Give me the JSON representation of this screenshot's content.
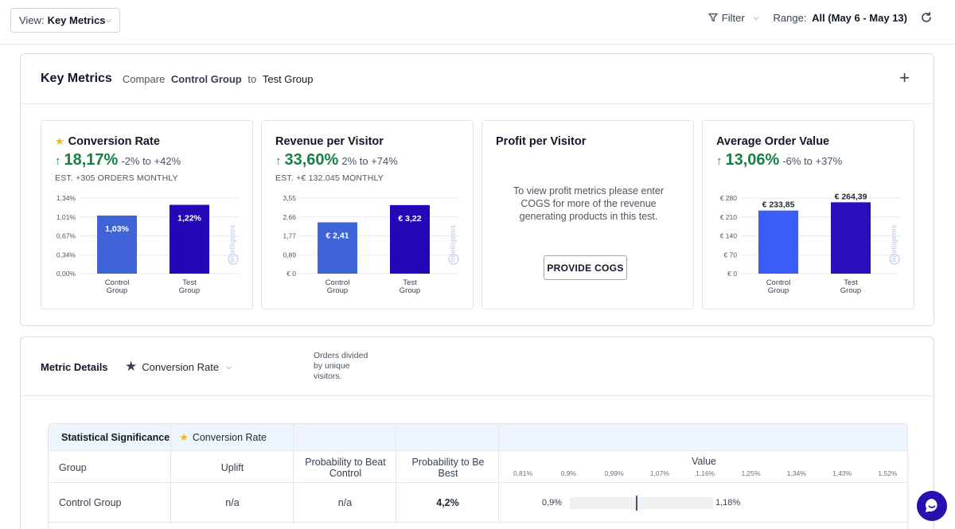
{
  "topbar": {
    "view_label": "View:",
    "view_value": "Key Metrics",
    "filter_label": "Filter",
    "range_label": "Range:",
    "range_value": "All (May 6 - May 13)"
  },
  "key_metrics": {
    "title": "Key Metrics",
    "compare_prefix": "Compare",
    "group_a": "Control Group",
    "compare_to": "to",
    "group_b": "Test Group"
  },
  "cards": [
    {
      "title": "Conversion Rate",
      "big_value": "18,17%",
      "range": "-2% to +42%",
      "est": "EST. +305 ORDERS MONTHLY",
      "chart_data": {
        "type": "bar",
        "categories": [
          "Control Group",
          "Test Group"
        ],
        "values": [
          1.03,
          1.22
        ],
        "value_labels": [
          "1,03%",
          "1,22%"
        ],
        "yticks": [
          "1,34%",
          "1,01%",
          "0,67%",
          "0,34%",
          "0,00%"
        ],
        "ylim": [
          0,
          1.34
        ]
      }
    },
    {
      "title": "Revenue per Visitor",
      "big_value": "33,60%",
      "range": "2% to +74%",
      "est": "EST. +€ 132.045 MONTHLY",
      "chart_data": {
        "type": "bar",
        "categories": [
          "Control Group",
          "Test Group"
        ],
        "values": [
          2.41,
          3.22
        ],
        "value_labels": [
          "€ 2,41",
          "€ 3,22"
        ],
        "yticks": [
          "3,55",
          "2,66",
          "1,77",
          "0,89",
          "€ 0"
        ],
        "ylim": [
          0,
          3.55
        ]
      }
    },
    {
      "title": "Profit per Visitor",
      "message": "To view profit metrics please enter COGS for more of the revenue generating products in this test.",
      "button": "PROVIDE COGS"
    },
    {
      "title": "Average Order Value",
      "big_value": "13,06%",
      "range": "-6% to +37%",
      "chart_data": {
        "type": "bar",
        "categories": [
          "Control Group",
          "Test Group"
        ],
        "values": [
          233.85,
          264.39
        ],
        "value_labels": [
          "€ 233,85",
          "€ 264,39"
        ],
        "yticks": [
          "€ 280",
          "€ 210",
          "€ 140",
          "€ 70",
          "€ 0"
        ],
        "ylim": [
          0,
          280
        ]
      }
    }
  ],
  "watermark": "intelligems",
  "metric_details": {
    "label": "Metric Details",
    "selected_metric": "Conversion Rate",
    "description": "Orders divided by unique visitors."
  },
  "stat_sig": {
    "title": "Statistical Significance",
    "metric": "Conversion Rate",
    "headers": {
      "group": "Group",
      "uplift": "Uplift",
      "prob_beat": "Probability to Beat Control",
      "prob_best": "Probability to Be Best",
      "value": "Value"
    },
    "axis_ticks": [
      "0,81%",
      "0,9%",
      "0,99%",
      "1,07%",
      "1,16%",
      "1,25%",
      "1,34%",
      "1,43%",
      "1,52%"
    ],
    "rows": [
      {
        "group": "Control Group",
        "uplift": "n/a",
        "prob_beat": "n/a",
        "prob_best": "4,2%",
        "range_low": "0,9%",
        "range_high": "1,18%"
      }
    ]
  },
  "colors": {
    "control_bar": "#3f64d8",
    "test_bar": "#2507b8",
    "aov_control_bar": "#3b5cf6",
    "aov_test_bar": "#2a10bc",
    "positive": "#168045",
    "star": "#f5b41f",
    "chat_button": "#2710b0"
  }
}
